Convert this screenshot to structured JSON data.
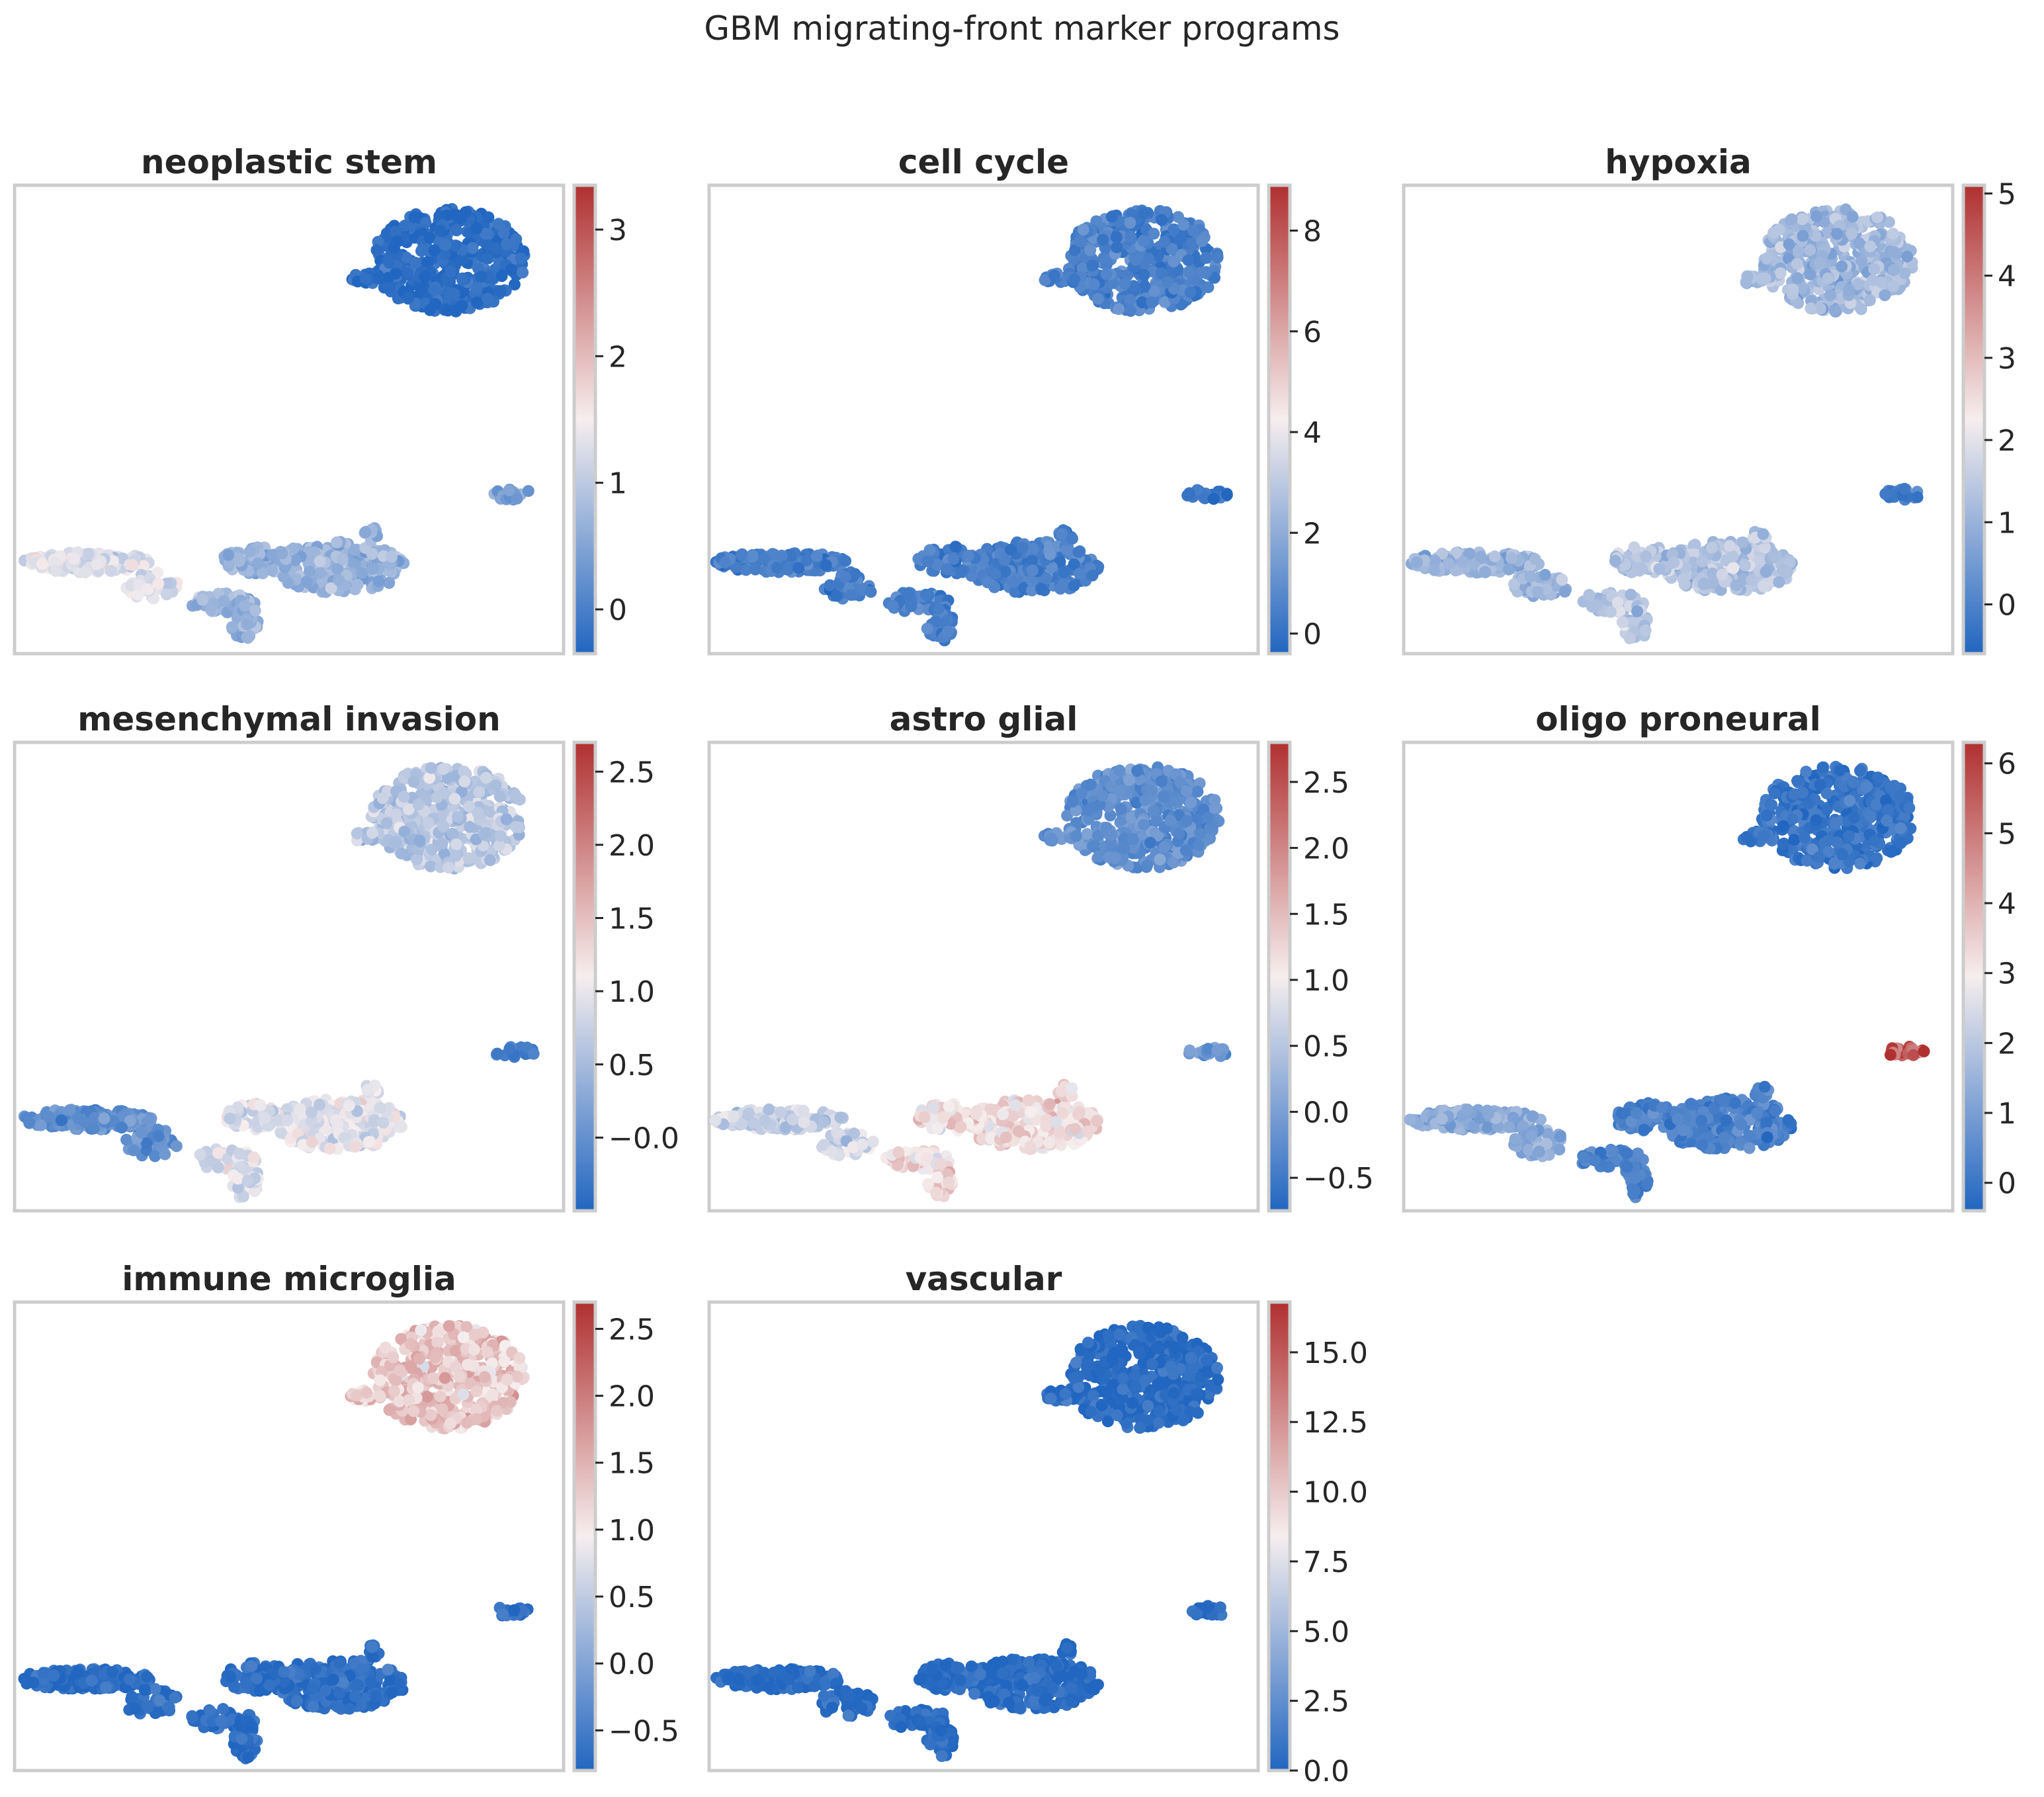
{
  "figure": {
    "title": "GBM migrating-front marker programs"
  },
  "colormap": {
    "name": "vlag",
    "low": "#2166c0",
    "mid": "#f6eeee",
    "high": "#b03030",
    "axis_frame": "#cccccc"
  },
  "chart_data": [
    {
      "type": "scatter",
      "title": "neoplastic stem",
      "colorbar": {
        "range": [
          -0.35,
          3.35
        ],
        "ticks": [
          0,
          1,
          2,
          3
        ],
        "tick_labels": [
          "0",
          "1",
          "2",
          "3"
        ]
      },
      "regions": [
        {
          "cluster": "upper-right blob",
          "level": 0.03
        },
        {
          "cluster": "small right island",
          "level": 0.2
        },
        {
          "cluster": "lower-left strand",
          "level": 0.45
        },
        {
          "cluster": "lower-middle lobes",
          "level": 0.28
        }
      ]
    },
    {
      "type": "scatter",
      "title": "cell cycle",
      "colorbar": {
        "range": [
          -0.4,
          8.9
        ],
        "ticks": [
          0,
          2,
          4,
          6,
          8
        ],
        "tick_labels": [
          "0",
          "2",
          "4",
          "6",
          "8"
        ]
      },
      "regions": [
        {
          "cluster": "upper-right blob",
          "level": 0.1
        },
        {
          "cluster": "small right island",
          "level": 0.05
        },
        {
          "cluster": "lower-left strand",
          "level": 0.08
        },
        {
          "cluster": "lower-middle lobes",
          "level": 0.1
        }
      ]
    },
    {
      "type": "scatter",
      "title": "hypoxia",
      "colorbar": {
        "range": [
          -0.6,
          5.1
        ],
        "ticks": [
          0,
          1,
          2,
          3,
          4,
          5
        ],
        "tick_labels": [
          "0",
          "1",
          "2",
          "3",
          "4",
          "5"
        ]
      },
      "regions": [
        {
          "cluster": "upper-right blob",
          "level": 0.3
        },
        {
          "cluster": "small right island",
          "level": 0.1
        },
        {
          "cluster": "lower-left strand",
          "level": 0.28
        },
        {
          "cluster": "lower-middle lobes",
          "level": 0.35
        }
      ]
    },
    {
      "type": "scatter",
      "title": "mesenchymal invasion",
      "colorbar": {
        "range": [
          -0.5,
          2.7
        ],
        "ticks": [
          0.0,
          0.5,
          1.0,
          1.5,
          2.0,
          2.5
        ],
        "tick_labels": [
          "−0.0",
          "0.5",
          "1.0",
          "1.5",
          "2.0",
          "2.5"
        ]
      },
      "regions": [
        {
          "cluster": "upper-right blob",
          "level": 0.35
        },
        {
          "cluster": "small right island",
          "level": 0.1
        },
        {
          "cluster": "lower-left strand",
          "level": 0.15
        },
        {
          "cluster": "lower-middle lobes",
          "level": 0.45
        }
      ]
    },
    {
      "type": "scatter",
      "title": "astro glial",
      "colorbar": {
        "range": [
          -0.75,
          2.8
        ],
        "ticks": [
          -0.5,
          0.0,
          0.5,
          1.0,
          1.5,
          2.0,
          2.5
        ],
        "tick_labels": [
          "−0.5",
          "0.0",
          "0.5",
          "1.0",
          "1.5",
          "2.0",
          "2.5"
        ]
      },
      "regions": [
        {
          "cluster": "upper-right blob",
          "level": 0.15
        },
        {
          "cluster": "small right island",
          "level": 0.15
        },
        {
          "cluster": "lower-left strand",
          "level": 0.4
        },
        {
          "cluster": "lower-middle lobes",
          "level": 0.55
        }
      ]
    },
    {
      "type": "scatter",
      "title": "oligo proneural",
      "colorbar": {
        "range": [
          -0.4,
          6.3
        ],
        "ticks": [
          0,
          1,
          2,
          3,
          4,
          5,
          6
        ],
        "tick_labels": [
          "0",
          "1",
          "2",
          "3",
          "4",
          "5",
          "6"
        ]
      },
      "regions": [
        {
          "cluster": "upper-right blob",
          "level": 0.06
        },
        {
          "cluster": "small right island",
          "level": 0.9
        },
        {
          "cluster": "lower-left strand",
          "level": 0.25
        },
        {
          "cluster": "lower-middle lobes",
          "level": 0.1
        }
      ]
    },
    {
      "type": "scatter",
      "title": "immune microglia",
      "colorbar": {
        "range": [
          -0.8,
          2.7
        ],
        "ticks": [
          -0.5,
          0.0,
          0.5,
          1.0,
          1.5,
          2.0,
          2.5
        ],
        "tick_labels": [
          "−0.5",
          "0.0",
          "0.5",
          "1.0",
          "1.5",
          "2.0",
          "2.5"
        ]
      },
      "regions": [
        {
          "cluster": "upper-right blob",
          "level": 0.6
        },
        {
          "cluster": "small right island",
          "level": 0.05
        },
        {
          "cluster": "lower-left strand",
          "level": 0.03
        },
        {
          "cluster": "lower-middle lobes",
          "level": 0.03
        }
      ]
    },
    {
      "type": "scatter",
      "title": "vascular",
      "colorbar": {
        "range": [
          0.0,
          16.8
        ],
        "ticks": [
          0.0,
          2.5,
          5.0,
          7.5,
          10.0,
          12.5,
          15.0
        ],
        "tick_labels": [
          "0.0",
          "2.5",
          "5.0",
          "7.5",
          "10.0",
          "12.5",
          "15.0"
        ]
      },
      "regions": [
        {
          "cluster": "upper-right blob",
          "level": 0.02
        },
        {
          "cluster": "small right island",
          "level": 0.02
        },
        {
          "cluster": "lower-left strand",
          "level": 0.02
        },
        {
          "cluster": "lower-middle lobes",
          "level": 0.02
        }
      ]
    }
  ]
}
